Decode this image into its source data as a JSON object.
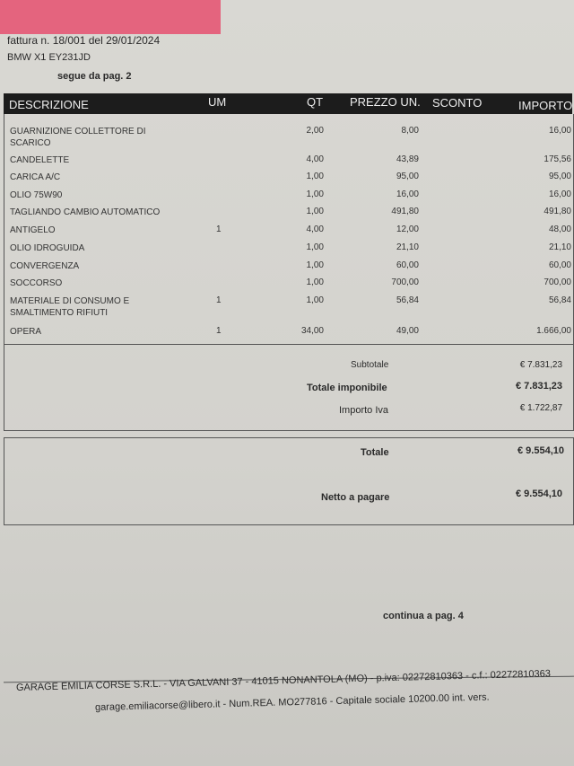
{
  "header": {
    "invoice": "fattura n. 18/001 del 29/01/2024",
    "vehicle": "BMW X1  EY231JD",
    "continued_from": "segue da pag. 2"
  },
  "table": {
    "columns": [
      "DESCRIZIONE",
      "UM",
      "QT",
      "PREZZO UN.",
      "SCONTO",
      "IMPORTO"
    ],
    "rows": [
      {
        "desc": "GUARNIZIONE COLLETTORE DI SCARICO",
        "um": "",
        "qt": "2,00",
        "price": "8,00",
        "amount": "16,00"
      },
      {
        "desc": "CANDELETTE",
        "um": "",
        "qt": "4,00",
        "price": "43,89",
        "amount": "175,56"
      },
      {
        "desc": "CARICA A/C",
        "um": "",
        "qt": "1,00",
        "price": "95,00",
        "amount": "95,00"
      },
      {
        "desc": "OLIO 75W90",
        "um": "",
        "qt": "1,00",
        "price": "16,00",
        "amount": "16,00"
      },
      {
        "desc": "TAGLIANDO CAMBIO AUTOMATICO",
        "um": "",
        "qt": "1,00",
        "price": "491,80",
        "amount": "491,80"
      },
      {
        "desc": "ANTIGELO",
        "um": "1",
        "qt": "4,00",
        "price": "12,00",
        "amount": "48,00"
      },
      {
        "desc": "OLIO IDROGUIDA",
        "um": "",
        "qt": "1,00",
        "price": "21,10",
        "amount": "21,10"
      },
      {
        "desc": "CONVERGENZA",
        "um": "",
        "qt": "1,00",
        "price": "60,00",
        "amount": "60,00"
      },
      {
        "desc": "SOCCORSO",
        "um": "",
        "qt": "1,00",
        "price": "700,00",
        "amount": "700,00"
      },
      {
        "desc": "MATERIALE DI CONSUMO E SMALTIMENTO RIFIUTI",
        "um": "1",
        "qt": "1,00",
        "price": "56,84",
        "amount": "56,84"
      },
      {
        "desc": "OPERA",
        "um": "1",
        "qt": "34,00",
        "price": "49,00",
        "amount": "1.666,00"
      }
    ]
  },
  "totals": {
    "subtotal_label": "Subtotale",
    "subtotal": "€ 7.831,23",
    "taxable_label": "Totale imponibile",
    "taxable": "€ 7.831,23",
    "vat_label": "Importo Iva",
    "vat": "€ 1.722,87",
    "total_label": "Totale",
    "total": "€ 9.554,10",
    "net_label": "Netto a pagare",
    "net": "€ 9.554,10"
  },
  "continues": "continua a pag. 4",
  "footer": {
    "line1": "GARAGE EMILIA CORSE S.R.L. - VIA GALVANI 37 - 41015 NONANTOLA (MO) - p.iva: 02272810363 - c.f.: 02272810363",
    "line2": "garage.emiliacorse@libero.it - Num.REA. MO277816 - Capitale sociale 10200.00 int. vers."
  }
}
